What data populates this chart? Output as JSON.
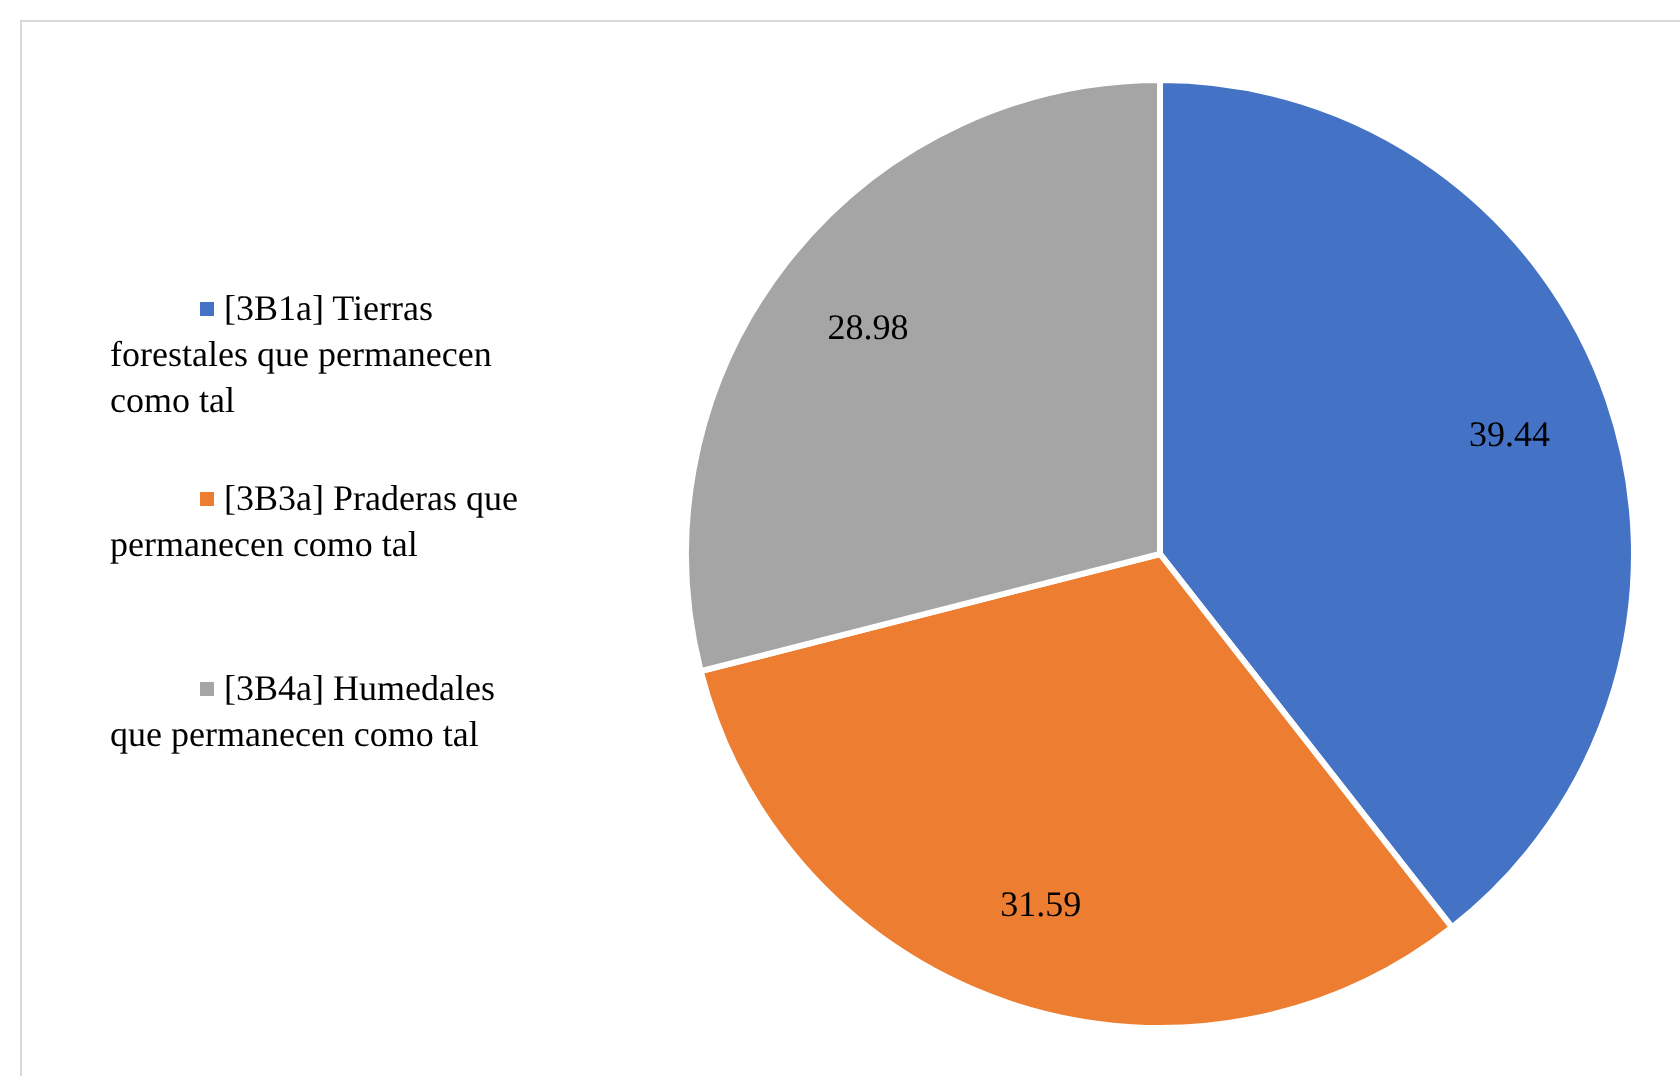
{
  "chart_data": {
    "type": "pie",
    "categories": [
      "[3B1a] Tierras forestales que permanecen como tal",
      "[3B3a] Praderas que permanecen como tal",
      "[3B4a] Humedales que permanecen como tal"
    ],
    "values": [
      39.44,
      31.59,
      28.98
    ],
    "colors": [
      "#4472c4",
      "#ed7d31",
      "#a5a5a5"
    ],
    "data_labels": true,
    "legend": "left"
  }
}
